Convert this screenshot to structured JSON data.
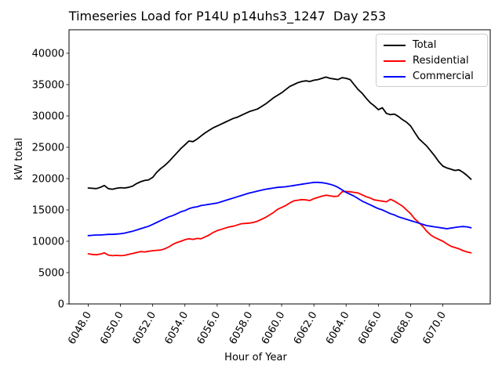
{
  "title": "Timeseries Load for P14U p14uhs3_1247  Day 253",
  "chart_data": {
    "type": "line",
    "title": "Timeseries Load for P14U p14uhs3_1247  Day 253",
    "xlabel": "Hour of Year",
    "ylabel": "kW total",
    "xlim": [
      6046.81,
      6072.94
    ],
    "ylim": [
      0,
      43750
    ],
    "grid": false,
    "legend_position": "upper right",
    "x_ticks": {
      "values": [
        6048,
        6050,
        6052,
        6054,
        6056,
        6058,
        6060,
        6062,
        6064,
        6066,
        6068,
        6070
      ],
      "labels": [
        "6048.0",
        "6050.0",
        "6052.0",
        "6054.0",
        "6056.0",
        "6058.0",
        "6060.0",
        "6062.0",
        "6064.0",
        "6066.0",
        "6068.0",
        "6070.0"
      ],
      "rotation": 60
    },
    "y_ticks": {
      "values": [
        0,
        5000,
        10000,
        15000,
        20000,
        25000,
        30000,
        35000,
        40000
      ],
      "labels": [
        "0",
        "5000",
        "10000",
        "15000",
        "20000",
        "25000",
        "30000",
        "35000",
        "40000"
      ]
    },
    "x_start": 6048.0,
    "x_step": 0.25,
    "series": [
      {
        "name": "Total",
        "color": "#000000",
        "values": [
          18500,
          18450,
          18400,
          18600,
          18900,
          18400,
          18300,
          18450,
          18550,
          18500,
          18600,
          18800,
          19200,
          19500,
          19700,
          19800,
          20200,
          21000,
          21600,
          22100,
          22700,
          23400,
          24100,
          24800,
          25400,
          26000,
          25900,
          26300,
          26800,
          27300,
          27700,
          28100,
          28400,
          28700,
          29000,
          29300,
          29600,
          29800,
          30100,
          30400,
          30700,
          30900,
          31100,
          31500,
          31900,
          32400,
          32900,
          33300,
          33700,
          34200,
          34700,
          35000,
          35300,
          35500,
          35600,
          35500,
          35700,
          35800,
          36000,
          36200,
          36000,
          35900,
          35800,
          36100,
          36000,
          35800,
          35000,
          34200,
          33600,
          32800,
          32100,
          31600,
          31000,
          31300,
          30400,
          30200,
          30300,
          29900,
          29400,
          29000,
          28400,
          27400,
          26400,
          25800,
          25200,
          24400,
          23600,
          22700,
          22000,
          21700,
          21500,
          21300,
          21400,
          21000,
          20500,
          19900
        ]
      },
      {
        "name": "Residential",
        "color": "#ff0000",
        "values": [
          8000,
          7900,
          7850,
          7950,
          8150,
          7800,
          7700,
          7750,
          7700,
          7750,
          7900,
          8050,
          8200,
          8350,
          8300,
          8400,
          8500,
          8550,
          8600,
          8800,
          9100,
          9500,
          9800,
          10000,
          10250,
          10400,
          10300,
          10450,
          10400,
          10700,
          11000,
          11400,
          11700,
          11900,
          12100,
          12300,
          12400,
          12600,
          12800,
          12850,
          12900,
          13000,
          13200,
          13500,
          13800,
          14200,
          14600,
          15100,
          15400,
          15700,
          16100,
          16450,
          16550,
          16650,
          16600,
          16500,
          16800,
          17000,
          17200,
          17350,
          17250,
          17150,
          17200,
          17900,
          17950,
          17900,
          17800,
          17700,
          17400,
          17100,
          16900,
          16600,
          16500,
          16400,
          16300,
          16700,
          16400,
          16000,
          15600,
          15000,
          14400,
          13600,
          13000,
          12400,
          11600,
          11000,
          10600,
          10300,
          10000,
          9600,
          9200,
          9000,
          8800,
          8500,
          8300,
          8150
        ]
      },
      {
        "name": "Commercial",
        "color": "#0000ff",
        "values": [
          10900,
          10950,
          11000,
          11000,
          11050,
          11100,
          11100,
          11150,
          11200,
          11300,
          11450,
          11600,
          11800,
          12000,
          12200,
          12400,
          12700,
          13000,
          13300,
          13600,
          13900,
          14100,
          14400,
          14700,
          14900,
          15200,
          15400,
          15500,
          15700,
          15800,
          15900,
          16000,
          16100,
          16300,
          16500,
          16700,
          16900,
          17100,
          17300,
          17500,
          17700,
          17850,
          18000,
          18150,
          18300,
          18400,
          18500,
          18600,
          18650,
          18700,
          18800,
          18900,
          19000,
          19100,
          19200,
          19300,
          19400,
          19400,
          19350,
          19250,
          19100,
          18900,
          18600,
          18200,
          17800,
          17500,
          17200,
          16800,
          16400,
          16100,
          15800,
          15500,
          15200,
          15000,
          14700,
          14400,
          14200,
          13900,
          13700,
          13500,
          13300,
          13100,
          12900,
          12700,
          12500,
          12400,
          12300,
          12200,
          12100,
          12000,
          12100,
          12200,
          12300,
          12350,
          12300,
          12150
        ]
      }
    ]
  }
}
